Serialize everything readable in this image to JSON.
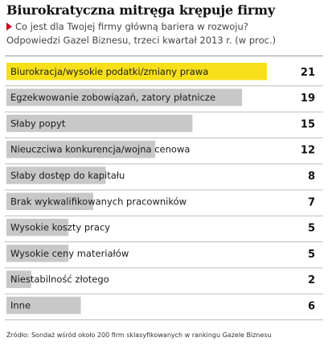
{
  "header": {
    "title": "Biurokratyczna mitręga krępuje firmy",
    "question": "Co jest dla Twojej firmy główną bariera w rozwoju?",
    "subtitle2": "Odpowiedzi Gazel Biznesu, trzeci kwartał 2013 r. (w proc.)"
  },
  "footer": {
    "source": "Źródło: Sondaż wśród około 200 firm sklasyfikowanych w rankingu Gazele Biznesu"
  },
  "colors": {
    "highlight": "#f7e01a",
    "bar": "#c8c8c8",
    "accent": "#d0021b"
  },
  "chart_data": {
    "type": "bar",
    "orientation": "horizontal",
    "title": "Biurokratyczna mitręga krępuje firmy",
    "unit": "proc.",
    "xlim": [
      0,
      21
    ],
    "highlighted_index": 0,
    "categories": [
      "Biurokracja/wysokie podatki/zmiany prawa",
      "Egzekwowanie zobowiązań, zatory płatnicze",
      "Słaby popyt",
      "Nieuczciwa konkurencja/wojna cenowa",
      "Słaby dostęp do kapitału",
      "Brak wykwalifikowanych pracowników",
      "Wysokie koszty pracy",
      "Wysokie ceny materiałów",
      "Niestabilność złotego",
      "Inne"
    ],
    "values": [
      21,
      19,
      15,
      12,
      8,
      7,
      5,
      5,
      2,
      6
    ]
  }
}
